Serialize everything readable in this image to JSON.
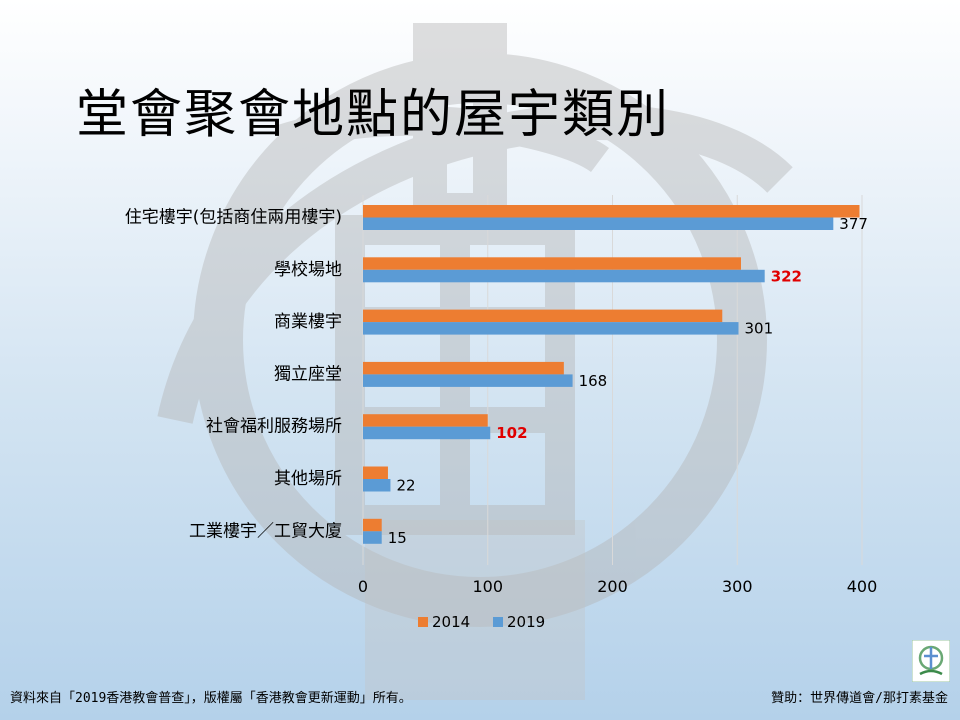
{
  "title": "堂會聚會地點的屋宇類別",
  "chart_data": {
    "type": "bar",
    "orientation": "horizontal",
    "categories": [
      "住宅樓宇(包括商住兩用樓宇)",
      "學校場地",
      "商業樓宇",
      "獨立座堂",
      "社會福利服務場所",
      "其他場所",
      "工業樓宇／工貿大廈"
    ],
    "series": [
      {
        "name": "2014",
        "color": "#ED7D31",
        "values": [
          398,
          303,
          288,
          161,
          100,
          20,
          15
        ]
      },
      {
        "name": "2019",
        "color": "#5B9BD5",
        "values": [
          377,
          322,
          301,
          168,
          102,
          22,
          15
        ]
      }
    ],
    "data_labels": {
      "series": "2019",
      "values": [
        "377",
        "322",
        "301",
        "168",
        "102",
        "22",
        "15"
      ],
      "highlight_color": "#E00000",
      "highlight_indices": [
        1,
        4
      ]
    },
    "x_ticks": [
      "0",
      "100",
      "200",
      "300",
      "400"
    ],
    "xlim": [
      0,
      400
    ],
    "grid": true,
    "legend_position": "bottom"
  },
  "footer": {
    "source": "資料來自「2019香港教會普查」，版權屬「香港教會更新運動」所有。",
    "sponsor": "贊助：世界傳道會/那打素基金"
  },
  "icons": {
    "logo": "church-logo-icon"
  },
  "colors": {
    "watermark": "#c9c9c9",
    "gridline": "#d9d9d9",
    "axis_text": "#000000"
  }
}
